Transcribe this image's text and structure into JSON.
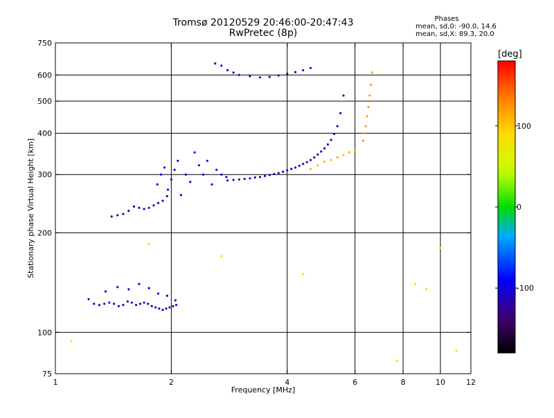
{
  "header": {
    "title": "Tromsø 20120529 20:46:00-20:47:43",
    "subtitle": "RwPretec (8p)",
    "phases_label": "Phases",
    "stats_0": "mean, sd,0: -90.0, 14.6",
    "stats_x": "mean, sd,X:  89.3, 20.0"
  },
  "chart_data": {
    "type": "scatter",
    "xlabel": "Frequency [MHz]",
    "ylabel": "Stationary phase Virtual Height [km]",
    "x_scale": "log",
    "y_scale": "log",
    "xlim": [
      1,
      12
    ],
    "ylim": [
      75,
      750
    ],
    "x_ticks": [
      1,
      2,
      4,
      6,
      8,
      10,
      12
    ],
    "x_tick_labels": [
      "1",
      "2",
      "4",
      "6",
      "8",
      "10",
      "12"
    ],
    "x_grid": [
      2,
      4,
      6,
      8,
      10
    ],
    "y_ticks": [
      75,
      100,
      200,
      300,
      400,
      500,
      600,
      750
    ],
    "y_tick_labels": [
      "75",
      "100",
      "200",
      "300",
      "400",
      "500",
      "600",
      "750"
    ],
    "y_grid": [
      100,
      200,
      300,
      400,
      500,
      600
    ],
    "grid": true,
    "colorbar": {
      "label": "[deg]",
      "min": -180,
      "max": 180,
      "ticks": [
        100,
        0,
        -100
      ],
      "tick_labels": [
        "100",
        "0",
        "-100"
      ],
      "placement": "right"
    },
    "series": [
      {
        "x": [
          1.22,
          1.26,
          1.3,
          1.34,
          1.38,
          1.42,
          1.46,
          1.5,
          1.54,
          1.58,
          1.62,
          1.66,
          1.7,
          1.74,
          1.78,
          1.82,
          1.86,
          1.9,
          1.94,
          1.98,
          2.02,
          2.06
        ],
        "y": [
          126,
          122,
          121,
          122,
          123,
          122,
          120,
          121,
          124,
          123,
          121,
          122,
          123,
          122,
          120,
          119,
          118,
          117,
          118,
          119,
          120,
          121
        ],
        "phase": -110
      },
      {
        "x": [
          1.35,
          1.45,
          1.55,
          1.65,
          1.75,
          1.85,
          1.95,
          2.05
        ],
        "y": [
          133,
          137,
          135,
          140,
          136,
          131,
          129,
          125
        ],
        "phase": -95
      },
      {
        "x": [
          1.4,
          1.45,
          1.5,
          1.55,
          1.6,
          1.65,
          1.7,
          1.75,
          1.8,
          1.85,
          1.9,
          1.95
        ],
        "y": [
          224,
          226,
          228,
          233,
          240,
          238,
          236,
          238,
          242,
          246,
          250,
          258
        ],
        "phase": -110
      },
      {
        "x": [
          1.84,
          1.88,
          1.92,
          1.96,
          2.0,
          2.04,
          2.08,
          2.12,
          2.18,
          2.24,
          2.3,
          2.36,
          2.42,
          2.48,
          2.55,
          2.62,
          2.7,
          2.78
        ],
        "y": [
          280,
          300,
          315,
          270,
          290,
          310,
          330,
          260,
          300,
          285,
          350,
          320,
          300,
          330,
          280,
          310,
          300,
          295
        ],
        "phase": -95
      },
      {
        "x": [
          2.8,
          2.9,
          3.0,
          3.1,
          3.2,
          3.3,
          3.4,
          3.5,
          3.6,
          3.7,
          3.8,
          3.9,
          4.0,
          4.1,
          4.2,
          4.3,
          4.4,
          4.5,
          4.6,
          4.7,
          4.8,
          4.9,
          5.0,
          5.1,
          5.2,
          5.3,
          5.4,
          5.5,
          5.6
        ],
        "y": [
          288,
          289,
          290,
          291,
          292,
          294,
          295,
          297,
          299,
          301,
          303,
          306,
          309,
          312,
          315,
          319,
          323,
          327,
          332,
          338,
          345,
          352,
          360,
          370,
          382,
          398,
          420,
          460,
          520
        ],
        "phase": -110
      },
      {
        "x": [
          4.6,
          4.8,
          5.0,
          5.2,
          5.4,
          5.6,
          5.8,
          6.0
        ],
        "y": [
          312,
          320,
          328,
          332,
          338,
          344,
          350,
          355
        ],
        "phase": 110
      },
      {
        "x": [
          6.3,
          6.35,
          6.4,
          6.45,
          6.5,
          6.55,
          6.6,
          6.65
        ],
        "y": [
          380,
          400,
          420,
          450,
          480,
          520,
          560,
          610
        ],
        "phase": 120
      },
      {
        "x": [
          2.6,
          2.7,
          2.8,
          2.9,
          3.0,
          3.2,
          3.4,
          3.6,
          3.8,
          4.0,
          4.2,
          4.4,
          4.6
        ],
        "y": [
          650,
          640,
          620,
          610,
          600,
          595,
          590,
          592,
          598,
          605,
          612,
          620,
          630
        ],
        "phase": -105
      },
      {
        "x": [
          1.1,
          1.75,
          2.7,
          4.4,
          7.7,
          8.6,
          9.2,
          10.0,
          11.0
        ],
        "y": [
          94,
          185,
          170,
          150,
          82,
          140,
          135,
          180,
          88
        ],
        "phase": 90
      }
    ]
  }
}
